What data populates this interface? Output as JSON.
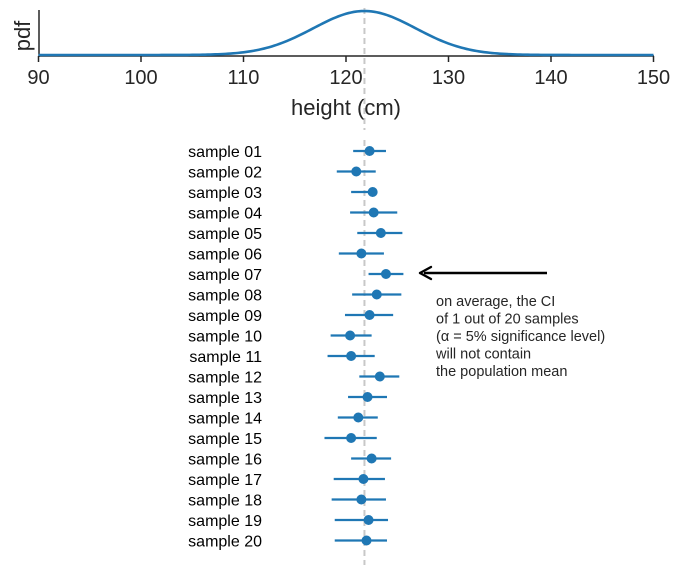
{
  "chart_data": [
    {
      "type": "line",
      "name": "population-pdf",
      "title": "",
      "xlabel": "height (cm)",
      "ylabel": "pdf",
      "xlim": [
        90,
        150
      ],
      "xticks": [
        90,
        100,
        110,
        120,
        130,
        140,
        150
      ],
      "distribution": {
        "kind": "normal",
        "mean": 121.8,
        "sd": 5.0
      },
      "mean_line": 121.8,
      "color": "#1f77b4",
      "mean_line_color": "#c8c8c8"
    },
    {
      "type": "scatter",
      "name": "sample-confidence-intervals",
      "xlim": [
        90,
        150
      ],
      "mean_line": 121.8,
      "color": "#1f77b4",
      "categories": [
        "sample 01",
        "sample 02",
        "sample 03",
        "sample 04",
        "sample 05",
        "sample 06",
        "sample 07",
        "sample 08",
        "sample 09",
        "sample 10",
        "sample 11",
        "sample 12",
        "sample 13",
        "sample 14",
        "sample 15",
        "sample 16",
        "sample 17",
        "sample 18",
        "sample 19",
        "sample 20"
      ],
      "means": [
        122.3,
        121.0,
        122.6,
        122.7,
        123.4,
        121.5,
        123.9,
        123.0,
        122.3,
        120.4,
        120.5,
        123.3,
        122.1,
        121.2,
        120.5,
        122.5,
        121.7,
        121.5,
        122.2,
        122.0
      ],
      "lower": [
        120.7,
        119.1,
        120.5,
        120.4,
        121.1,
        119.3,
        122.2,
        120.6,
        119.9,
        118.5,
        118.2,
        121.3,
        120.2,
        119.2,
        117.9,
        120.5,
        118.8,
        118.6,
        118.9,
        118.9
      ],
      "upper": [
        123.9,
        122.9,
        122.9,
        125.0,
        125.5,
        123.7,
        125.6,
        125.4,
        124.6,
        122.5,
        122.8,
        125.2,
        124.0,
        123.1,
        123.0,
        124.4,
        123.8,
        123.9,
        124.1,
        124.0
      ],
      "annotation": {
        "lines": [
          "on average, the CI",
          "of 1 out of 20 samples",
          "(α = 5% significance level)",
          "will not contain",
          "the population mean"
        ],
        "points_to": "sample 07"
      }
    }
  ]
}
